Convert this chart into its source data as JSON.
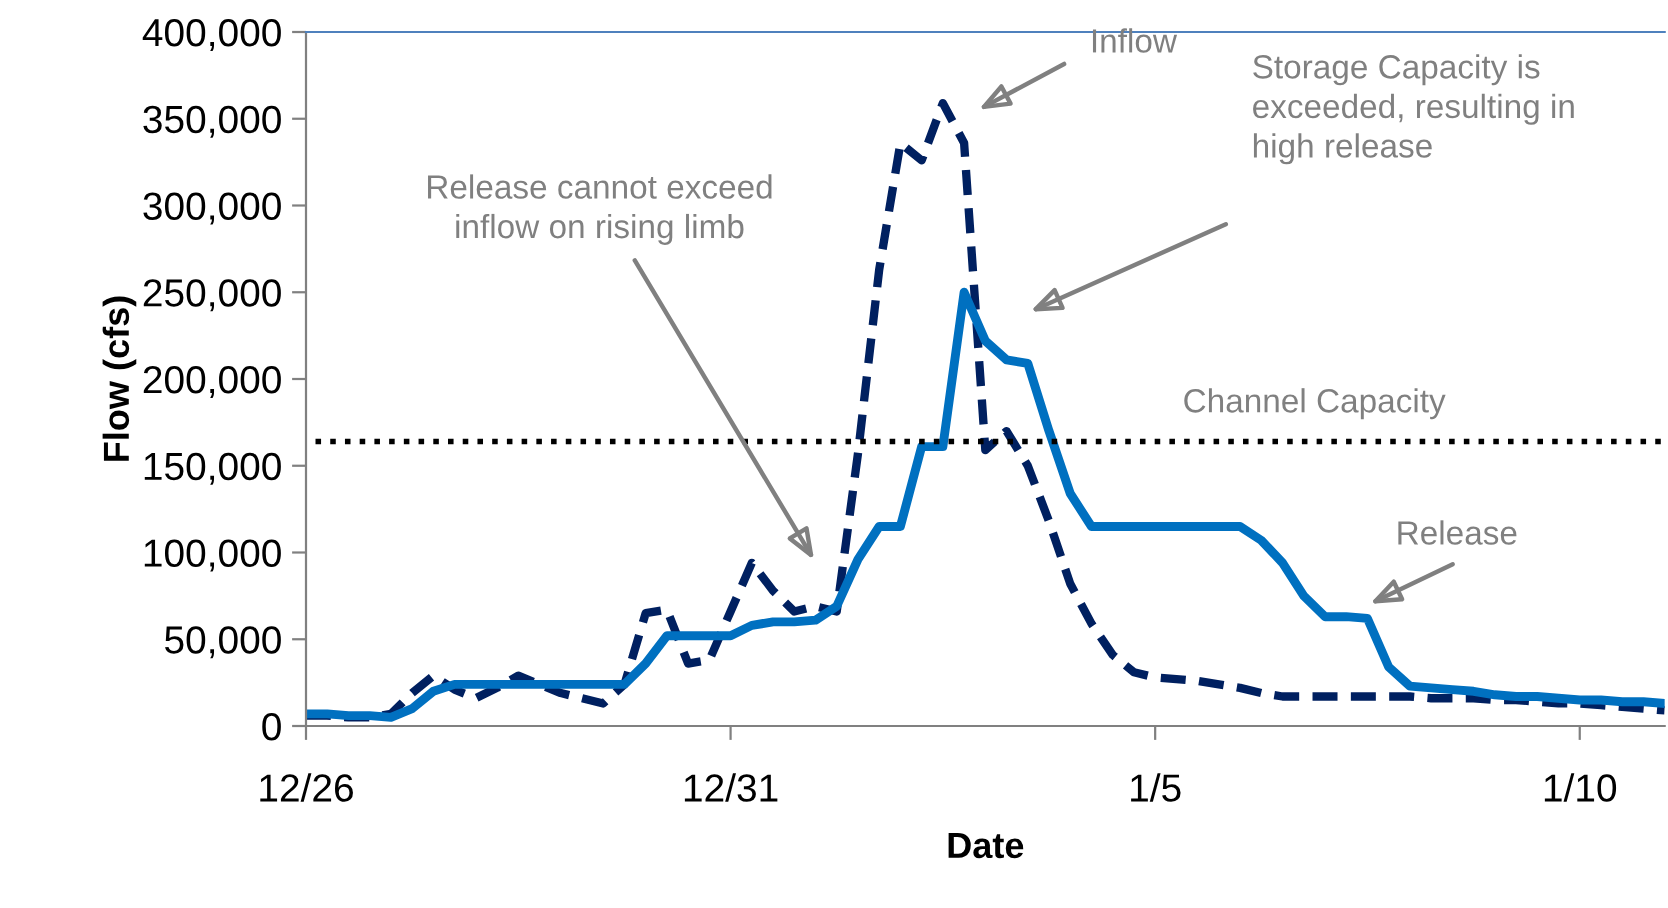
{
  "chart_data": {
    "type": "line",
    "xlabel": "Date",
    "ylabel": "Flow (cfs)",
    "categories": [
      "12/26",
      null,
      null,
      null,
      null,
      null,
      null,
      null,
      null,
      null,
      null,
      null,
      null,
      null,
      null,
      null,
      null,
      null,
      null,
      null,
      "12/31",
      null,
      null,
      null,
      null,
      null,
      null,
      null,
      null,
      null,
      null,
      null,
      null,
      null,
      null,
      null,
      null,
      null,
      null,
      null,
      "1/5",
      null,
      null,
      null,
      null,
      null,
      null,
      null,
      null,
      null,
      null,
      null,
      null,
      null,
      null,
      null,
      null,
      null,
      null,
      null,
      "1/10",
      null,
      null,
      null,
      null
    ],
    "ylim": [
      0,
      400000
    ],
    "yticks": [
      {
        "value": 0,
        "label": "0"
      },
      {
        "value": 50000,
        "label": "50,000"
      },
      {
        "value": 100000,
        "label": "100,000"
      },
      {
        "value": 150000,
        "label": "150,000"
      },
      {
        "value": 200000,
        "label": "200,000"
      },
      {
        "value": 250000,
        "label": "250,000"
      },
      {
        "value": 300000,
        "label": "300,000"
      },
      {
        "value": 350000,
        "label": "350,000"
      },
      {
        "value": 400000,
        "label": "400,000"
      }
    ],
    "series": [
      {
        "color": "#002060",
        "line_style": "dashed",
        "values": [
          6000,
          6000,
          5000,
          5000,
          7000,
          19000,
          29000,
          21000,
          16000,
          22000,
          29000,
          24000,
          19000,
          16000,
          13000,
          24000,
          65000,
          67000,
          36000,
          38000,
          66000,
          94000,
          78000,
          66000,
          69000,
          66000,
          157000,
          263000,
          336000,
          326000,
          359000,
          336000,
          159000,
          170000,
          150000,
          118000,
          82000,
          59000,
          41000,
          31000,
          28000,
          27000,
          26000,
          24000,
          22000,
          19000,
          17000,
          17000,
          17000,
          17000,
          17000,
          17000,
          17000,
          16000,
          16000,
          16000,
          15000,
          15000,
          14000,
          13000,
          13000,
          12000,
          11000,
          10000,
          9000
        ]
      },
      {
        "color": "#0070c0",
        "line_style": "solid",
        "values": [
          7000,
          7000,
          6000,
          6000,
          5000,
          10000,
          20000,
          24000,
          24000,
          24000,
          24000,
          24000,
          24000,
          24000,
          24000,
          24000,
          36000,
          52000,
          52000,
          52000,
          52000,
          58000,
          60000,
          60000,
          61000,
          69000,
          96000,
          115000,
          115000,
          161000,
          161000,
          250000,
          222000,
          211000,
          209000,
          170000,
          134000,
          115000,
          115000,
          115000,
          115000,
          115000,
          115000,
          115000,
          115000,
          107000,
          94000,
          75000,
          63000,
          63000,
          62000,
          34000,
          23000,
          22000,
          21000,
          20000,
          18000,
          17000,
          17000,
          16000,
          15000,
          15000,
          14000,
          14000,
          13000
        ]
      }
    ],
    "ref_lines": [
      {
        "axis": "y",
        "value": 164000,
        "label": "Channel Capacity",
        "color": "#000000",
        "line_style": "dotted"
      }
    ],
    "annotations": [
      "Inflow",
      "Release cannot exceed\ninflow on rising limb",
      "Storage Capacity is\nexceeded, resulting in\nhigh release",
      "Release"
    ]
  }
}
